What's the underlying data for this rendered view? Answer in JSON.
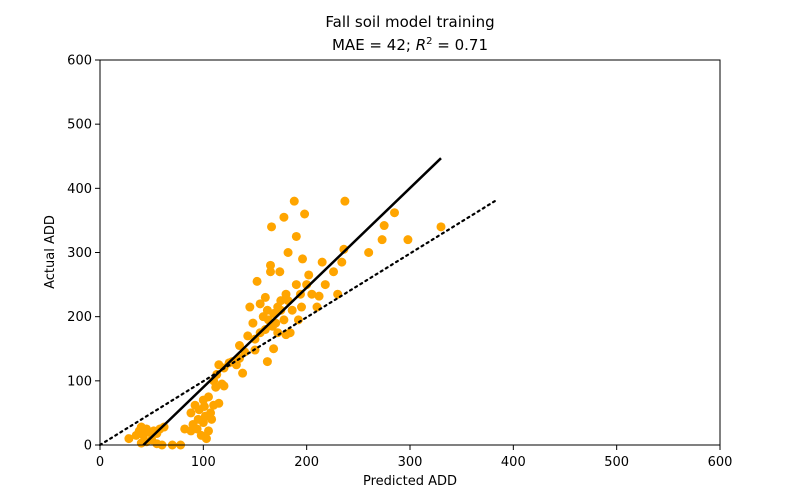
{
  "chart_data": {
    "type": "scatter",
    "title": "Fall soil model training",
    "subtitle_prefix": "MAE = 42; ",
    "subtitle_r2_base": "R",
    "subtitle_r2_exp": "2",
    "subtitle_suffix": " = 0.71",
    "xlabel": "Predicted ADD",
    "ylabel": "Actual ADD",
    "xlim": [
      0,
      600
    ],
    "ylim": [
      0,
      600
    ],
    "xticks": [
      0,
      100,
      200,
      300,
      400,
      500,
      600
    ],
    "yticks": [
      0,
      100,
      200,
      300,
      400,
      500,
      600
    ],
    "grid": false,
    "marker_color": "#FFA500",
    "line_color": "#000000",
    "points": [
      [
        28,
        10
      ],
      [
        35,
        15
      ],
      [
        38,
        22
      ],
      [
        40,
        28
      ],
      [
        42,
        15
      ],
      [
        45,
        25
      ],
      [
        48,
        20
      ],
      [
        50,
        8
      ],
      [
        52,
        22
      ],
      [
        55,
        18
      ],
      [
        58,
        25
      ],
      [
        60,
        0
      ],
      [
        62,
        28
      ],
      [
        45,
        5
      ],
      [
        40,
        3
      ],
      [
        55,
        2
      ],
      [
        70,
        0
      ],
      [
        78,
        0
      ],
      [
        82,
        25
      ],
      [
        88,
        50
      ],
      [
        88,
        22
      ],
      [
        90,
        32
      ],
      [
        92,
        62
      ],
      [
        94,
        25
      ],
      [
        95,
        40
      ],
      [
        96,
        55
      ],
      [
        98,
        15
      ],
      [
        100,
        35
      ],
      [
        100,
        70
      ],
      [
        101,
        60
      ],
      [
        102,
        45
      ],
      [
        103,
        10
      ],
      [
        105,
        22
      ],
      [
        105,
        75
      ],
      [
        107,
        50
      ],
      [
        108,
        40
      ],
      [
        110,
        62
      ],
      [
        110,
        100
      ],
      [
        112,
        90
      ],
      [
        113,
        110
      ],
      [
        115,
        65
      ],
      [
        115,
        125
      ],
      [
        118,
        95
      ],
      [
        120,
        92
      ],
      [
        120,
        120
      ],
      [
        125,
        128
      ],
      [
        128,
        130
      ],
      [
        132,
        125
      ],
      [
        135,
        155
      ],
      [
        135,
        135
      ],
      [
        138,
        112
      ],
      [
        140,
        145
      ],
      [
        143,
        170
      ],
      [
        145,
        215
      ],
      [
        148,
        190
      ],
      [
        150,
        148
      ],
      [
        150,
        165
      ],
      [
        152,
        255
      ],
      [
        155,
        175
      ],
      [
        155,
        220
      ],
      [
        158,
        200
      ],
      [
        160,
        180
      ],
      [
        160,
        230
      ],
      [
        162,
        210
      ],
      [
        162,
        130
      ],
      [
        163,
        195
      ],
      [
        165,
        270
      ],
      [
        165,
        280
      ],
      [
        166,
        340
      ],
      [
        167,
        185
      ],
      [
        168,
        205
      ],
      [
        168,
        150
      ],
      [
        170,
        190
      ],
      [
        172,
        175
      ],
      [
        172,
        215
      ],
      [
        174,
        270
      ],
      [
        175,
        210
      ],
      [
        175,
        225
      ],
      [
        178,
        355
      ],
      [
        178,
        195
      ],
      [
        180,
        235
      ],
      [
        180,
        172
      ],
      [
        182,
        300
      ],
      [
        182,
        225
      ],
      [
        184,
        175
      ],
      [
        186,
        210
      ],
      [
        188,
        380
      ],
      [
        190,
        250
      ],
      [
        190,
        325
      ],
      [
        192,
        195
      ],
      [
        194,
        235
      ],
      [
        195,
        215
      ],
      [
        196,
        290
      ],
      [
        198,
        360
      ],
      [
        200,
        250
      ],
      [
        202,
        265
      ],
      [
        205,
        235
      ],
      [
        210,
        215
      ],
      [
        212,
        232
      ],
      [
        215,
        285
      ],
      [
        218,
        250
      ],
      [
        226,
        270
      ],
      [
        230,
        235
      ],
      [
        234,
        285
      ],
      [
        236,
        305
      ],
      [
        237,
        380
      ],
      [
        260,
        300
      ],
      [
        273,
        320
      ],
      [
        275,
        342
      ],
      [
        285,
        362
      ],
      [
        298,
        320
      ],
      [
        330,
        340
      ]
    ],
    "fit_line": [
      [
        42,
        0
      ],
      [
        330,
        447
      ]
    ],
    "reference_line": [
      [
        0,
        0
      ],
      [
        385,
        383
      ]
    ]
  }
}
